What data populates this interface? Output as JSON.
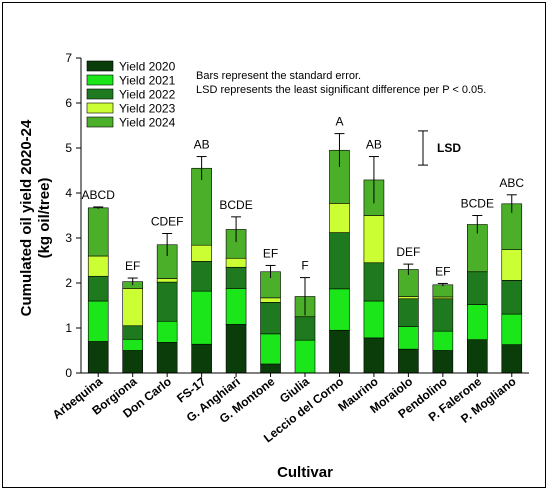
{
  "chart_data": {
    "type": "bar",
    "stacked": true,
    "xlabel": "Cultivar",
    "ylabel_line1": "Cumulated oil yield 2020-24",
    "ylabel_line2": "(kg oil/tree)",
    "ylim": [
      0,
      7
    ],
    "yticks": [
      "0",
      "1",
      "2",
      "3",
      "4",
      "5",
      "6",
      "7"
    ],
    "categories": [
      "Arbequina",
      "Borgiona",
      "Don Carlo",
      "FS-17",
      "G. Anghiari",
      "G. Montone",
      "Giulia",
      "Leccio del Corno",
      "Maurino",
      "Moraiolo",
      "Pendolino",
      "P. Falerone",
      "P. Mogliano"
    ],
    "series": [
      {
        "name": "Yield 2020",
        "color": "#0b3d0b",
        "values": [
          0.7,
          0.5,
          0.68,
          0.64,
          1.08,
          0.2,
          0.0,
          0.95,
          0.78,
          0.53,
          0.5,
          0.74,
          0.63
        ]
      },
      {
        "name": "Yield 2021",
        "color": "#1ae61a",
        "values": [
          0.9,
          0.25,
          0.47,
          1.18,
          0.8,
          0.67,
          0.73,
          0.92,
          0.82,
          0.5,
          0.43,
          0.78,
          0.68
        ]
      },
      {
        "name": "Yield 2022",
        "color": "#1f7a1f",
        "values": [
          0.55,
          0.3,
          0.87,
          0.66,
          0.47,
          0.7,
          0.52,
          1.25,
          0.85,
          0.62,
          0.72,
          0.73,
          0.75
        ]
      },
      {
        "name": "Yield 2023",
        "color": "#ccff33",
        "values": [
          0.45,
          0.83,
          0.08,
          0.36,
          0.2,
          0.1,
          0.0,
          0.65,
          1.05,
          0.05,
          0.04,
          0.0,
          0.68
        ]
      },
      {
        "name": "Yield 2024",
        "color": "#4caf2a",
        "values": [
          1.07,
          0.15,
          0.75,
          1.71,
          0.64,
          0.58,
          0.45,
          1.18,
          0.79,
          0.6,
          0.27,
          1.05,
          1.02
        ]
      }
    ],
    "error": [
      0.02,
      0.08,
      0.25,
      0.26,
      0.28,
      0.14,
      0.42,
      0.37,
      0.52,
      0.12,
      0.03,
      0.2,
      0.2
    ],
    "letters": [
      "ABCD",
      "EF",
      "CDEF",
      "AB",
      "BCDE",
      "EF",
      "F",
      "A",
      "AB",
      "DEF",
      "EF",
      "BCDE",
      "ABC"
    ],
    "notes": [
      "Bars represent the standard error.",
      "LSD represents the least significant difference per P < 0.05."
    ],
    "lsd_label": "LSD",
    "lsd_range": [
      4.62,
      5.38
    ],
    "legend_placement": "top-left",
    "grid": false
  }
}
